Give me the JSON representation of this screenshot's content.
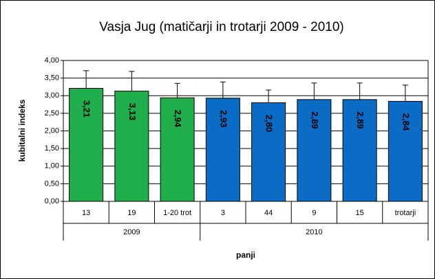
{
  "chart_data": {
    "type": "bar",
    "title": "Vasja Jug (matičarji in trotarji 2009 - 2010)",
    "x_label": "panji",
    "y_label": "kubitalni indeks",
    "categories": [
      "13",
      "19",
      "1-20 trot",
      "3",
      "44",
      "9",
      "15",
      "trotarji"
    ],
    "groups": [
      {
        "name": "2009",
        "size": 3
      },
      {
        "name": "2010",
        "size": 5
      }
    ],
    "values": [
      3.21,
      3.13,
      2.94,
      2.93,
      2.8,
      2.89,
      2.89,
      2.84
    ],
    "value_labels": [
      "3,21",
      "3,13",
      "2,94",
      "2,93",
      "2,80",
      "2,89",
      "2,89",
      "2,84"
    ],
    "errors": [
      0.5,
      0.56,
      0.41,
      0.46,
      0.36,
      0.47,
      0.47,
      0.46
    ],
    "colors": [
      "#1fae4b",
      "#1fae4b",
      "#1fae4b",
      "#0a6cc4",
      "#0a6cc4",
      "#0a6cc4",
      "#0a6cc4",
      "#0a6cc4"
    ],
    "ylim": [
      0,
      4
    ],
    "yticks": [
      {
        "value": 0,
        "label": "0,00"
      },
      {
        "value": 0.5,
        "label": "0,50"
      },
      {
        "value": 1,
        "label": "1,00"
      },
      {
        "value": 1.5,
        "label": "1,50"
      },
      {
        "value": 2,
        "label": "2,00"
      },
      {
        "value": 2.5,
        "label": "2,50"
      },
      {
        "value": 3,
        "label": "3,00"
      },
      {
        "value": 3.5,
        "label": "3,50"
      },
      {
        "value": 4,
        "label": "4,00"
      }
    ],
    "grid": true
  }
}
